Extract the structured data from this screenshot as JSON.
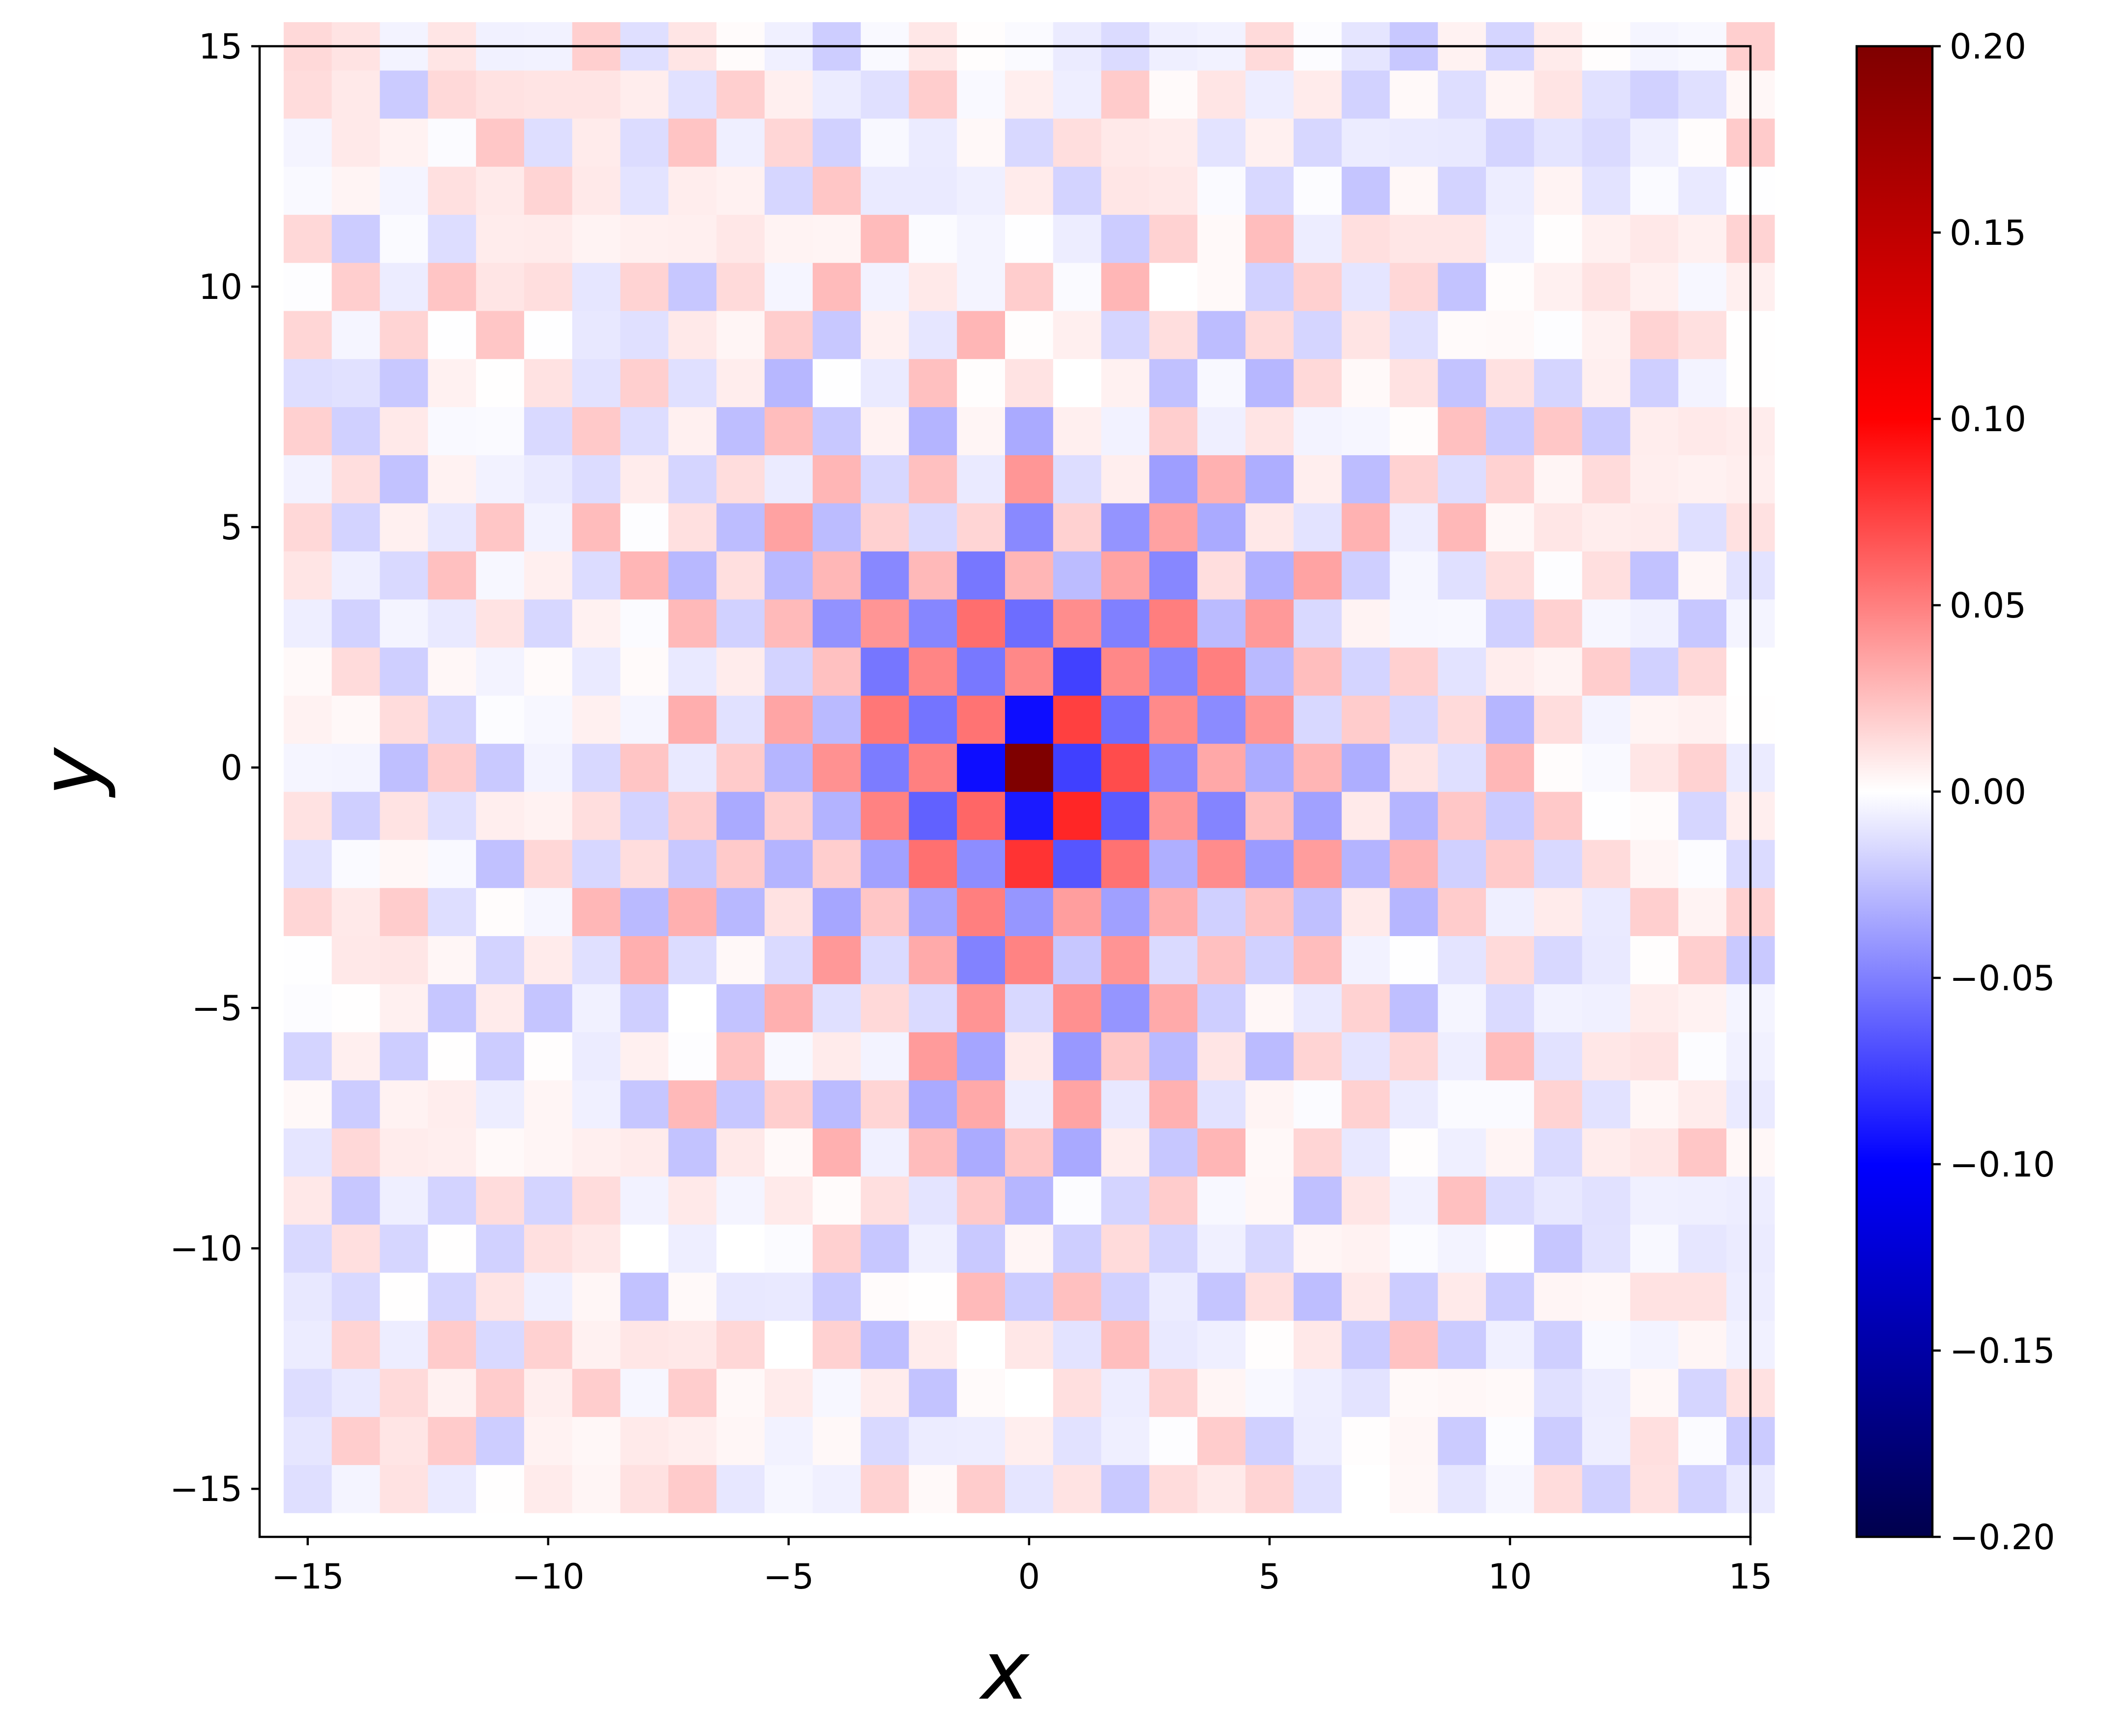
{
  "chart_data": {
    "type": "heatmap",
    "title": "",
    "xlabel": "x",
    "ylabel": "y",
    "xlim": [
      -16,
      15
    ],
    "ylim": [
      -16,
      15
    ],
    "x_ticks": [
      -15,
      -10,
      -5,
      0,
      5,
      10,
      15
    ],
    "y_ticks": [
      -15,
      -10,
      -5,
      0,
      5,
      10,
      15
    ],
    "x_tick_labels": [
      "−15",
      "−10",
      "−5",
      "0",
      "5",
      "10",
      "15"
    ],
    "y_tick_labels": [
      "−15",
      "−10",
      "−5",
      "0",
      "5",
      "10",
      "15"
    ],
    "grid": false,
    "cell_size": 1,
    "description_of_values": "cell value at integer lattice site (x, y); checkerboard pattern with sign alternating by parity of x+y, amplitude decaying with distance from origin",
    "center_value": 0.2,
    "colorbar": {
      "colormap": "seismic",
      "range": [
        -0.2,
        0.2
      ],
      "ticks": [
        0.2,
        0.15,
        0.1,
        0.05,
        0.0,
        -0.05,
        -0.1,
        -0.15,
        -0.2
      ],
      "tick_labels": [
        "0.20",
        "0.15",
        "0.10",
        "0.05",
        "0.00",
        "−0.05",
        "−0.10",
        "−0.15",
        "−0.20"
      ],
      "colors": {
        "min": "#00004c",
        "low": "#0000ff",
        "mid": "#ffffff",
        "high": "#ff0000",
        "max": "#7f0000"
      }
    },
    "sample_values": [
      {
        "x": 0,
        "y": 0,
        "value": 0.2
      },
      {
        "x": 1,
        "y": 0,
        "value": -0.075
      },
      {
        "x": -1,
        "y": 0,
        "value": -0.095
      },
      {
        "x": 0,
        "y": 1,
        "value": -0.095
      },
      {
        "x": 0,
        "y": -1,
        "value": -0.09
      },
      {
        "x": 1,
        "y": 1,
        "value": 0.075
      },
      {
        "x": 1,
        "y": -1,
        "value": 0.085
      },
      {
        "x": -1,
        "y": 1,
        "value": 0.055
      },
      {
        "x": -1,
        "y": -1,
        "value": 0.06
      },
      {
        "x": 2,
        "y": 0,
        "value": 0.07
      },
      {
        "x": -2,
        "y": 0,
        "value": 0.05
      }
    ]
  }
}
